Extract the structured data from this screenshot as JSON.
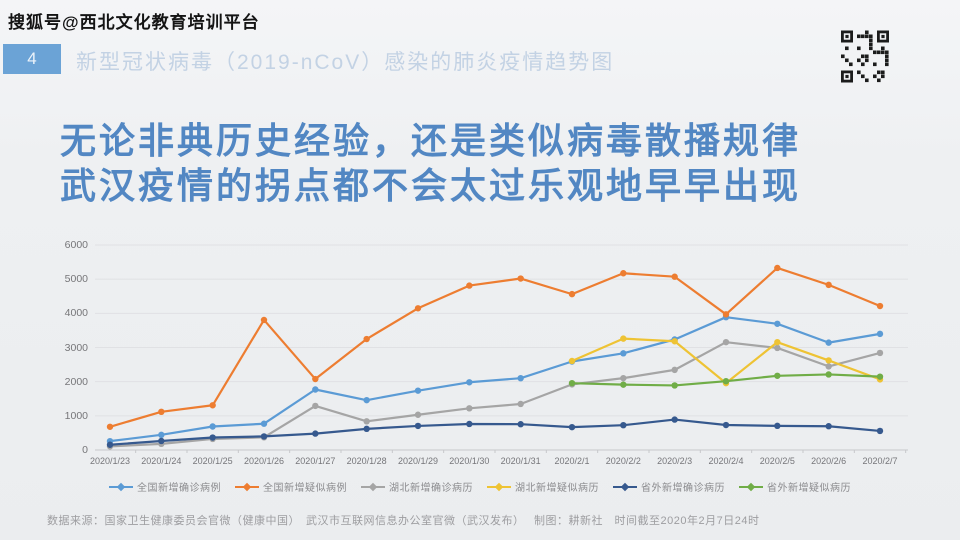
{
  "watermark": "搜狐号@西北文化教育培训平台",
  "header": {
    "slide_number": "4",
    "title": "新型冠状病毒（2019-nCoV）感染的肺炎疫情趋势图"
  },
  "headline": {
    "line1": "无论非典历史经验，还是类似病毒散播规律",
    "line2": "武汉疫情的拐点都不会太过乐观地早早出现"
  },
  "chart_data": {
    "type": "line",
    "title": "新型冠状病毒感染的肺炎疫情趋势图",
    "categories": [
      "2020/1/23",
      "2020/1/24",
      "2020/1/25",
      "2020/1/26",
      "2020/1/27",
      "2020/1/28",
      "2020/1/29",
      "2020/1/30",
      "2020/1/31",
      "2020/2/1",
      "2020/2/2",
      "2020/2/3",
      "2020/2/4",
      "2020/2/5",
      "2020/2/6",
      "2020/2/7"
    ],
    "series": [
      {
        "name": "全国新增确诊病例",
        "color": "#5b9bd5",
        "values": [
          259,
          444,
          688,
          769,
          1771,
          1459,
          1737,
          1982,
          2102,
          2590,
          2829,
          3235,
          3887,
          3694,
          3143,
          3399
        ]
      },
      {
        "name": "全国新增疑似病例",
        "color": "#ed7d31",
        "values": [
          680,
          1118,
          1309,
          3806,
          2077,
          3248,
          4148,
          4812,
          5019,
          4562,
          5173,
          5072,
          3971,
          5328,
          4833,
          4214
        ]
      },
      {
        "name": "湖北新增确诊病历",
        "color": "#a5a5a5",
        "values": [
          105,
          180,
          323,
          371,
          1291,
          840,
          1032,
          1220,
          1347,
          1921,
          2103,
          2345,
          3156,
          2987,
          2447,
          2841
        ]
      },
      {
        "name": "湖北新增疑似病历",
        "color": "#eec334",
        "values": [
          null,
          null,
          null,
          null,
          null,
          null,
          null,
          null,
          null,
          2606,
          3260,
          3182,
          1957,
          3156,
          2622,
          2067
        ]
      },
      {
        "name": "省外新增确诊病历",
        "color": "#36598e",
        "values": [
          154,
          264,
          365,
          398,
          480,
          619,
          705,
          762,
          755,
          669,
          726,
          890,
          731,
          707,
          696,
          558
        ]
      },
      {
        "name": "省外新增疑似病历",
        "color": "#70ad47",
        "values": [
          null,
          null,
          null,
          null,
          null,
          null,
          null,
          null,
          null,
          1956,
          1913,
          1890,
          2014,
          2172,
          2211,
          2147
        ]
      }
    ],
    "ylim": [
      0,
      6000
    ],
    "yticks": [
      0,
      1000,
      2000,
      3000,
      4000,
      5000,
      6000
    ],
    "grid": true,
    "legend_position": "bottom",
    "xlabel": "",
    "ylabel": ""
  },
  "footer": {
    "text": "数据来源：国家卫生健康委员会官微（健康中国）　武汉市互联网信息办公室官微（武汉发布）　 制图：耕新社　时间截至2020年2月7日24时"
  }
}
